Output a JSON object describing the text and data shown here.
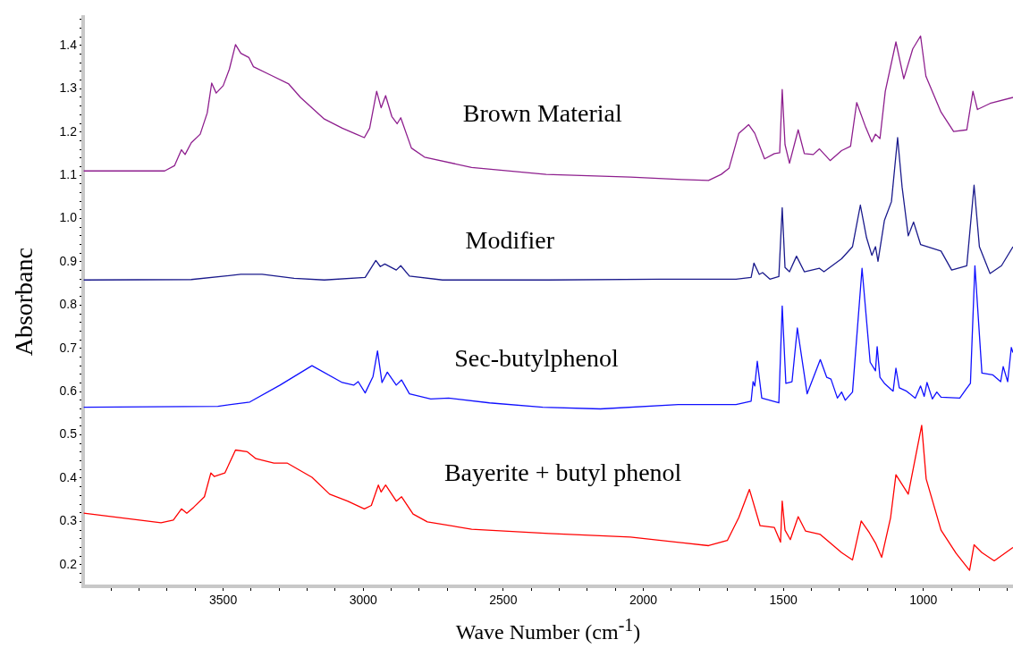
{
  "chart_data": {
    "type": "line",
    "xlabel": "Wave Number (cm$^{-1}$)",
    "ylabel": "Absorbanc",
    "xlim": [
      4000,
      680
    ],
    "ylim": [
      0.15,
      1.465
    ],
    "grid": false,
    "legend": false,
    "marker": "none",
    "line_style": "solid",
    "xticks": [
      {
        "value": 3900,
        "label": null
      },
      {
        "value": 3800,
        "label": null
      },
      {
        "value": 3700,
        "label": null
      },
      {
        "value": 3600,
        "label": null
      },
      3500,
      {
        "value": 3400,
        "label": null
      },
      {
        "value": 3300,
        "label": null
      },
      {
        "value": 3200,
        "label": null
      },
      {
        "value": 3100,
        "label": null
      },
      3000,
      {
        "value": 2900,
        "label": null
      },
      {
        "value": 2800,
        "label": null
      },
      {
        "value": 2700,
        "label": null
      },
      {
        "value": 2600,
        "label": null
      },
      2500,
      {
        "value": 2400,
        "label": null
      },
      {
        "value": 2300,
        "label": null
      },
      {
        "value": 2200,
        "label": null
      },
      {
        "value": 2100,
        "label": null
      },
      2000,
      {
        "value": 1900,
        "label": null
      },
      {
        "value": 1800,
        "label": null
      },
      {
        "value": 1700,
        "label": null
      },
      {
        "value": 1600,
        "label": null
      },
      1500,
      {
        "value": 1400,
        "label": null
      },
      {
        "value": 1300,
        "label": null
      },
      {
        "value": 1200,
        "label": null
      },
      {
        "value": 1100,
        "label": null
      },
      1000,
      {
        "value": 900,
        "label": null
      },
      {
        "value": 800,
        "label": null
      },
      {
        "value": 700,
        "label": null
      }
    ],
    "yticks": [
      {
        "value": 0.2,
        "label": "0.2"
      },
      {
        "value": 0.3,
        "label": "0.3"
      },
      {
        "value": 0.4,
        "label": "0.4"
      },
      {
        "value": 0.5,
        "label": "0.5"
      },
      {
        "value": 0.6,
        "label": "0.6"
      },
      {
        "value": 0.7,
        "label": "0.7"
      },
      {
        "value": 0.8,
        "label": "0.8"
      },
      {
        "value": 0.9,
        "label": "0.9"
      },
      {
        "value": 1,
        "label": "1.0"
      },
      {
        "value": 1.1,
        "label": "1.1"
      },
      {
        "value": 1.2,
        "label": "1.2"
      },
      {
        "value": 1.3,
        "label": "1.3"
      },
      {
        "value": 1.4,
        "label": "1.4"
      },
      {
        "value": 0.16,
        "label": null
      },
      {
        "value": 0.18,
        "label": null
      },
      {
        "value": 0.22,
        "label": null
      },
      {
        "value": 0.24,
        "label": null
      },
      {
        "value": 0.26,
        "label": null
      },
      {
        "value": 0.28,
        "label": null
      },
      {
        "value": 0.32,
        "label": null
      },
      {
        "value": 0.34,
        "label": null
      },
      {
        "value": 0.36,
        "label": null
      },
      {
        "value": 0.38,
        "label": null
      },
      {
        "value": 0.42,
        "label": null
      },
      {
        "value": 0.44,
        "label": null
      },
      {
        "value": 0.46,
        "label": null
      },
      {
        "value": 0.48,
        "label": null
      },
      {
        "value": 0.52,
        "label": null
      },
      {
        "value": 0.54,
        "label": null
      },
      {
        "value": 0.56,
        "label": null
      },
      {
        "value": 0.58,
        "label": null
      },
      {
        "value": 0.62,
        "label": null
      },
      {
        "value": 0.64,
        "label": null
      },
      {
        "value": 0.66,
        "label": null
      },
      {
        "value": 0.68,
        "label": null
      },
      {
        "value": 0.72,
        "label": null
      },
      {
        "value": 0.74,
        "label": null
      },
      {
        "value": 0.76,
        "label": null
      },
      {
        "value": 0.78,
        "label": null
      },
      {
        "value": 0.82,
        "label": null
      },
      {
        "value": 0.84,
        "label": null
      },
      {
        "value": 0.86,
        "label": null
      },
      {
        "value": 0.88,
        "label": null
      },
      {
        "value": 0.92,
        "label": null
      },
      {
        "value": 0.94,
        "label": null
      },
      {
        "value": 0.96,
        "label": null
      },
      {
        "value": 0.98,
        "label": null
      },
      {
        "value": 1.02,
        "label": null
      },
      {
        "value": 1.04,
        "label": null
      },
      {
        "value": 1.06,
        "label": null
      },
      {
        "value": 1.08,
        "label": null
      },
      {
        "value": 1.12,
        "label": null
      },
      {
        "value": 1.14,
        "label": null
      },
      {
        "value": 1.16,
        "label": null
      },
      {
        "value": 1.18,
        "label": null
      },
      {
        "value": 1.22,
        "label": null
      },
      {
        "value": 1.24,
        "label": null
      },
      {
        "value": 1.26,
        "label": null
      },
      {
        "value": 1.28,
        "label": null
      },
      {
        "value": 1.32,
        "label": null
      },
      {
        "value": 1.34,
        "label": null
      },
      {
        "value": 1.36,
        "label": null
      },
      {
        "value": 1.38,
        "label": null
      },
      {
        "value": 1.42,
        "label": null
      },
      {
        "value": 1.44,
        "label": null
      },
      {
        "value": 1.46,
        "label": null
      }
    ],
    "series": [
      {
        "name": "Brown Material",
        "color": "#8e1f8e",
        "x": [
          3998,
          3709,
          3674,
          3649,
          3636,
          3614,
          3582,
          3557,
          3541,
          3525,
          3500,
          3478,
          3456,
          3437,
          3408,
          3392,
          3329,
          3266,
          3224,
          3139,
          3075,
          3025,
          2996,
          2977,
          2952,
          2936,
          2920,
          2898,
          2879,
          2866,
          2828,
          2781,
          2613,
          2347,
          2046,
          1862,
          1767,
          1722,
          1694,
          1659,
          1624,
          1602,
          1567,
          1532,
          1513,
          1504,
          1494,
          1478,
          1447,
          1425,
          1393,
          1371,
          1333,
          1292,
          1260,
          1238,
          1206,
          1184,
          1171,
          1155,
          1136,
          1098,
          1070,
          1038,
          1010,
          991,
          937,
          892,
          845,
          823,
          807,
          762,
          680
        ],
        "values": [
          1.11,
          1.11,
          1.122,
          1.159,
          1.148,
          1.175,
          1.195,
          1.244,
          1.313,
          1.29,
          1.307,
          1.345,
          1.402,
          1.382,
          1.372,
          1.351,
          1.331,
          1.311,
          1.28,
          1.23,
          1.209,
          1.195,
          1.187,
          1.209,
          1.294,
          1.256,
          1.284,
          1.236,
          1.219,
          1.233,
          1.163,
          1.142,
          1.118,
          1.102,
          1.096,
          1.09,
          1.088,
          1.102,
          1.116,
          1.197,
          1.217,
          1.197,
          1.138,
          1.15,
          1.152,
          1.298,
          1.171,
          1.128,
          1.205,
          1.15,
          1.148,
          1.161,
          1.134,
          1.157,
          1.167,
          1.268,
          1.211,
          1.177,
          1.195,
          1.185,
          1.294,
          1.408,
          1.323,
          1.392,
          1.422,
          1.329,
          1.246,
          1.201,
          1.205,
          1.294,
          1.252,
          1.266,
          1.28
        ]
      },
      {
        "name": "Modifier",
        "color": "#1a1a8c",
        "x": [
          3998,
          3614,
          3437,
          3361,
          3247,
          3139,
          2993,
          2955,
          2939,
          2923,
          2882,
          2866,
          2835,
          2717,
          2337,
          1938,
          1669,
          1615,
          1605,
          1586,
          1574,
          1548,
          1516,
          1504,
          1494,
          1478,
          1453,
          1425,
          1371,
          1355,
          1292,
          1253,
          1225,
          1203,
          1184,
          1171,
          1162,
          1139,
          1114,
          1092,
          1076,
          1054,
          1035,
          1010,
          937,
          899,
          845,
          819,
          800,
          762,
          721,
          680
        ],
        "values": [
          0.858,
          0.859,
          0.871,
          0.871,
          0.862,
          0.858,
          0.864,
          0.903,
          0.889,
          0.895,
          0.881,
          0.891,
          0.867,
          0.858,
          0.858,
          0.86,
          0.86,
          0.864,
          0.897,
          0.871,
          0.875,
          0.86,
          0.866,
          1.025,
          0.887,
          0.877,
          0.913,
          0.877,
          0.885,
          0.877,
          0.907,
          0.935,
          1.031,
          0.956,
          0.915,
          0.935,
          0.901,
          0.996,
          1.039,
          1.187,
          1.073,
          0.96,
          0.992,
          0.94,
          0.925,
          0.881,
          0.891,
          1.077,
          0.935,
          0.873,
          0.891,
          0.935
        ]
      },
      {
        "name": "Sec-butylphenol",
        "color": "#1010ff",
        "x": [
          3998,
          3519,
          3405,
          3297,
          3183,
          3075,
          3034,
          3018,
          2993,
          2965,
          2949,
          2933,
          2914,
          2882,
          2863,
          2835,
          2759,
          2695,
          2549,
          2359,
          2153,
          1875,
          1669,
          1615,
          1608,
          1602,
          1593,
          1577,
          1516,
          1504,
          1491,
          1469,
          1450,
          1415,
          1368,
          1345,
          1330,
          1307,
          1292,
          1279,
          1253,
          1219,
          1190,
          1171,
          1165,
          1155,
          1139,
          1108,
          1098,
          1086,
          1060,
          1029,
          1010,
          997,
          987,
          968,
          952,
          937,
          870,
          848,
          832,
          816,
          791,
          753,
          724,
          715,
          699,
          686,
          680
        ],
        "values": [
          0.564,
          0.566,
          0.576,
          0.615,
          0.66,
          0.621,
          0.615,
          0.623,
          0.597,
          0.635,
          0.694,
          0.621,
          0.645,
          0.615,
          0.627,
          0.595,
          0.583,
          0.585,
          0.574,
          0.564,
          0.56,
          0.57,
          0.57,
          0.578,
          0.623,
          0.613,
          0.67,
          0.585,
          0.574,
          0.798,
          0.619,
          0.623,
          0.747,
          0.595,
          0.674,
          0.633,
          0.629,
          0.585,
          0.599,
          0.58,
          0.599,
          0.885,
          0.668,
          0.648,
          0.704,
          0.633,
          0.619,
          0.601,
          0.654,
          0.609,
          0.601,
          0.585,
          0.613,
          0.589,
          0.621,
          0.583,
          0.599,
          0.587,
          0.585,
          0.605,
          0.619,
          0.891,
          0.643,
          0.639,
          0.623,
          0.658,
          0.623,
          0.702,
          0.69
        ]
      },
      {
        "name": "Bayerite + butyl phenol",
        "color": "#ff0000",
        "x": [
          3998,
          3722,
          3678,
          3649,
          3630,
          3605,
          3567,
          3544,
          3532,
          3494,
          3456,
          3414,
          3383,
          3319,
          3272,
          3183,
          3120,
          3056,
          2996,
          2971,
          2946,
          2936,
          2920,
          2882,
          2863,
          2822,
          2771,
          2613,
          2337,
          2046,
          1767,
          1700,
          1659,
          1621,
          1583,
          1532,
          1510,
          1504,
          1494,
          1475,
          1447,
          1421,
          1368,
          1292,
          1253,
          1222,
          1193,
          1171,
          1149,
          1117,
          1098,
          1054,
          1006,
          990,
          937,
          883,
          835,
          819,
          791,
          747,
          680
        ],
        "values": [
          0.319,
          0.297,
          0.303,
          0.329,
          0.319,
          0.333,
          0.357,
          0.412,
          0.404,
          0.412,
          0.465,
          0.461,
          0.445,
          0.435,
          0.435,
          0.402,
          0.363,
          0.347,
          0.329,
          0.337,
          0.384,
          0.368,
          0.384,
          0.347,
          0.357,
          0.317,
          0.299,
          0.282,
          0.272,
          0.264,
          0.244,
          0.256,
          0.309,
          0.374,
          0.29,
          0.286,
          0.252,
          0.347,
          0.28,
          0.258,
          0.311,
          0.278,
          0.27,
          0.228,
          0.211,
          0.301,
          0.274,
          0.25,
          0.217,
          0.309,
          0.408,
          0.363,
          0.522,
          0.398,
          0.28,
          0.226,
          0.187,
          0.246,
          0.228,
          0.209,
          0.24
        ]
      }
    ]
  }
}
